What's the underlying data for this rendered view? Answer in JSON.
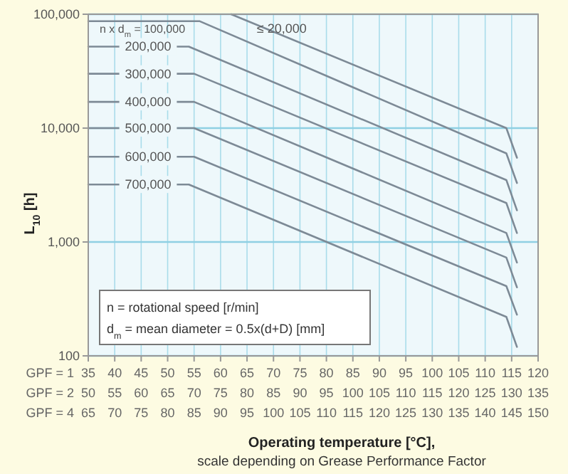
{
  "chart_data": {
    "type": "line",
    "xlabel": "Operating temperature [°C],",
    "subtitle": "scale depending on Grease Performance Factor",
    "ylabel": "L$_{10}$ [h]",
    "xlim": [
      35,
      120
    ],
    "xticks": [
      35,
      40,
      45,
      50,
      55,
      60,
      65,
      70,
      75,
      80,
      85,
      90,
      95,
      100,
      105,
      110,
      115,
      120
    ],
    "x2lim": [
      50,
      135
    ],
    "x2ticks": [
      50,
      55,
      60,
      65,
      70,
      75,
      80,
      85,
      90,
      95,
      100,
      105,
      110,
      115,
      120,
      125,
      130,
      135
    ],
    "ylim": [
      100,
      100000
    ],
    "yticks": [
      {
        "value": 100,
        "label": "100"
      },
      {
        "value": 1000,
        "label": "1,000"
      },
      {
        "value": 10000,
        "label": "10,000"
      },
      {
        "value": 100000,
        "label": "100,000"
      }
    ],
    "log": "y",
    "grid": true,
    "marker": "none",
    "line_style": "solid",
    "annotations": [
      "GPF = 1",
      "GPF = 2",
      "GPF = 4",
      "n = rotational speed [r/min]",
      "d$_{m}$ = mean diameter = 0.5x(d+D) [mm]",
      "65",
      "70",
      "75",
      "80",
      "85",
      "90",
      "95",
      "100",
      "105",
      "110",
      "115",
      "120",
      "125",
      "130",
      "135",
      "140",
      "145",
      "150"
    ],
    "series": [
      {
        "name": "≤ 20,000",
        "color": "#7d8a96",
        "x": [
          62,
          114,
          116
        ],
        "values": [
          100000,
          10000,
          5500
        ]
      },
      {
        "name": "n x d$_{m}$ = 100,000",
        "color": "#7d8a96",
        "x": [
          35,
          56,
          114,
          116
        ],
        "values": [
          87000,
          87000,
          6000,
          3300
        ]
      },
      {
        "name": "200,000",
        "color": "#7d8a96",
        "x": [
          35,
          54,
          114,
          116
        ],
        "values": [
          52000,
          52000,
          3500,
          1900
        ]
      },
      {
        "name": "300,000",
        "color": "#7d8a96",
        "x": [
          35,
          55,
          114,
          116
        ],
        "values": [
          30000,
          30000,
          2200,
          1200
        ]
      },
      {
        "name": "400,000",
        "color": "#7d8a96",
        "x": [
          35,
          55,
          114,
          116
        ],
        "values": [
          17000,
          17000,
          1200,
          660
        ]
      },
      {
        "name": "500,000",
        "color": "#7d8a96",
        "x": [
          35,
          55,
          114,
          116
        ],
        "values": [
          10000,
          10000,
          730,
          400
        ]
      },
      {
        "name": "600,000",
        "color": "#7d8a96",
        "x": [
          35,
          55,
          114,
          116
        ],
        "values": [
          5600,
          5600,
          410,
          230
        ]
      },
      {
        "name": "700,000",
        "color": "#7d8a96",
        "x": [
          35,
          54,
          114,
          116
        ],
        "values": [
          3200,
          3200,
          220,
          120
        ]
      }
    ]
  }
}
